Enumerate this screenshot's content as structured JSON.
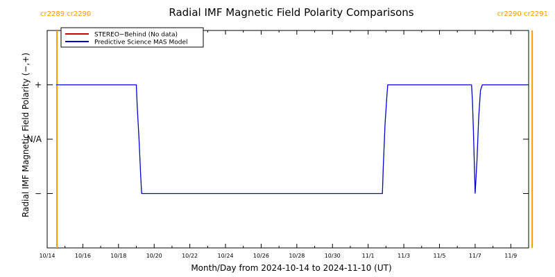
{
  "chart_data": {
    "type": "line",
    "title": "Radial IMF Magnetic Field Polarity Comparisons",
    "xlabel": "Month/Day from 2024-10-14 to 2024-11-10 (UT)",
    "ylabel": "Radial IMF Magnetic Field Polarity (−,+)",
    "x_tick_labels": [
      "10/14",
      "10/16",
      "10/18",
      "10/20",
      "10/22",
      "10/24",
      "10/26",
      "10/28",
      "10/30",
      "11/1",
      "11/3",
      "11/5",
      "11/7",
      "11/9"
    ],
    "x_tick_days": [
      0,
      2,
      4,
      6,
      8,
      10,
      12,
      14,
      16,
      18,
      20,
      22,
      24,
      26
    ],
    "xlim": [
      0,
      27.0
    ],
    "y_tick_labels": [
      "+",
      "N/A",
      "−"
    ],
    "y_tick_values": [
      1,
      0,
      -1
    ],
    "ylim": [
      -2,
      2
    ],
    "legend": {
      "placement": "top-left",
      "entries": [
        {
          "label": "STEREO−Behind (No data)",
          "color": "#cc0000"
        },
        {
          "label": "Predictive Science MAS Model",
          "color": "#0000cc"
        }
      ]
    },
    "carrington": {
      "left_label": "cr2289 cr2290",
      "right_label": "cr2290 cr2291",
      "color": "#ff9900",
      "line_days": [
        0.55,
        27.2
      ]
    },
    "series": [
      {
        "name": "Predictive Science MAS Model",
        "color": "#0000cc",
        "x": [
          0.5,
          5.0,
          5.05,
          5.15,
          5.25,
          5.3,
          18.8,
          18.85,
          18.95,
          19.05,
          19.1,
          23.8,
          23.85,
          23.9,
          23.95,
          24.0,
          24.1,
          24.2,
          24.3,
          24.4,
          26.9
        ],
        "y": [
          1,
          1,
          0.6,
          0,
          -0.7,
          -1,
          -1,
          -0.5,
          0.3,
          0.8,
          1,
          1,
          0.7,
          0.2,
          -0.4,
          -1,
          -0.4,
          0.4,
          0.9,
          1,
          1
        ]
      }
    ]
  }
}
